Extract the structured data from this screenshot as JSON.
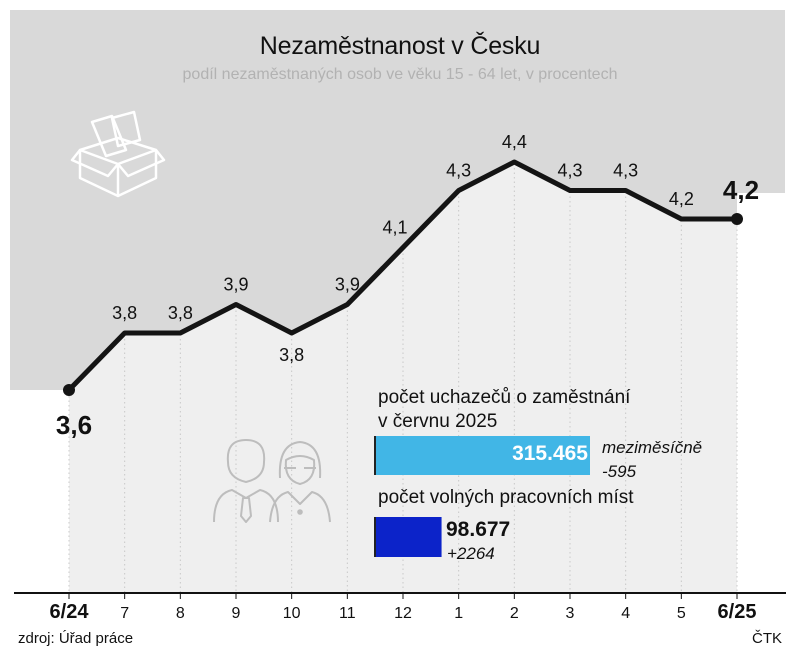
{
  "colors": {
    "panel_bg": "#d9d9d9",
    "plot_bg": "#efefef",
    "line": "#141414",
    "accent_light": "#41b6e6",
    "accent_dark": "#0c23c9",
    "icon": "#bdbdbd",
    "subtitle": "#b2b2b2"
  },
  "chart_data": {
    "type": "line",
    "title": "Nezaměstnanost v Česku",
    "subtitle": "podíl nezaměstnaných osob ve věku 15 - 64 let, v procentech",
    "categories": [
      "6/24",
      "7",
      "8",
      "9",
      "10",
      "11",
      "12",
      "1",
      "2",
      "3",
      "4",
      "5",
      "6/25"
    ],
    "series": [
      {
        "values": [
          3.6,
          3.8,
          3.8,
          3.9,
          3.8,
          3.9,
          4.1,
          4.3,
          4.4,
          4.3,
          4.3,
          4.2,
          4.2
        ],
        "labels": [
          "3,6",
          "3,8",
          "3,8",
          "3,9",
          "3,8",
          "3,9",
          "4,1",
          "4,3",
          "4,4",
          "4,3",
          "4,3",
          "4,2",
          "4,2"
        ]
      }
    ],
    "ylim": [
      3.3,
      4.8
    ],
    "grid": false,
    "axis_emphasis": [
      "6/24",
      "6/25"
    ],
    "inset_bars": [
      {
        "title_lines": [
          "počet uchazečů o zaměstnání",
          "v červnu 2025"
        ],
        "value": 315465,
        "value_label": "315.465",
        "change_lines": [
          "meziměsíčně",
          "-595"
        ],
        "color": "#41b6e6"
      },
      {
        "title_lines": [
          "počet volných pracovních míst"
        ],
        "value": 98677,
        "value_label": "98.677",
        "change_lines": [
          "+2264"
        ],
        "color": "#0c23c9"
      }
    ]
  },
  "source": "zdroj: Úřad práce",
  "agency": "ČTK",
  "icons": [
    "box-icon",
    "man-icon",
    "woman-icon"
  ]
}
